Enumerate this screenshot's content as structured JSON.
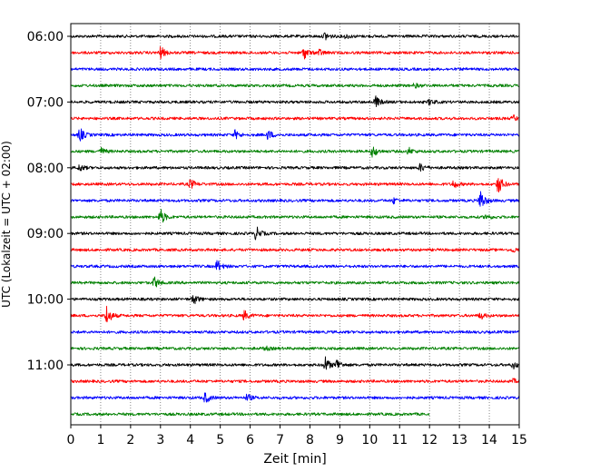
{
  "chart_data": {
    "type": "line",
    "title": "",
    "xlabel": "Zeit  [min]",
    "ylabel": "UTC (Lokalzeit = UTC + 02:00)",
    "xlim": [
      0,
      15
    ],
    "x_ticks": [
      "0",
      "1",
      "2",
      "3",
      "4",
      "5",
      "6",
      "7",
      "8",
      "9",
      "10",
      "11",
      "12",
      "13",
      "14",
      "15"
    ],
    "y_ticks": [
      "06:00",
      "07:00",
      "08:00",
      "09:00",
      "10:00",
      "11:00"
    ],
    "grid": "vertical-dotted",
    "trace_colors": [
      "#000000",
      "#ff0000",
      "#0000ff",
      "#008000"
    ],
    "traces": [
      {
        "time": "06:00",
        "end_min": 15,
        "events": [
          [
            8.5,
            0.6
          ],
          [
            9.2,
            0.3
          ]
        ]
      },
      {
        "time": "06:15",
        "end_min": 15,
        "events": [
          [
            3.0,
            0.9
          ],
          [
            7.8,
            0.9
          ],
          [
            8.3,
            0.5
          ]
        ]
      },
      {
        "time": "06:30",
        "end_min": 15,
        "events": []
      },
      {
        "time": "06:45",
        "end_min": 15,
        "events": [
          [
            11.5,
            0.3
          ]
        ]
      },
      {
        "time": "07:00",
        "end_min": 15,
        "events": [
          [
            10.2,
            0.8
          ],
          [
            12.0,
            0.4
          ]
        ]
      },
      {
        "time": "07:15",
        "end_min": 15,
        "events": [
          [
            14.8,
            0.4
          ]
        ]
      },
      {
        "time": "07:30",
        "end_min": 15,
        "events": [
          [
            0.3,
            1.0
          ],
          [
            5.5,
            0.6
          ],
          [
            6.6,
            0.7
          ]
        ]
      },
      {
        "time": "07:45",
        "end_min": 15,
        "events": [
          [
            1.0,
            0.5
          ],
          [
            10.1,
            0.9
          ],
          [
            11.3,
            0.5
          ]
        ]
      },
      {
        "time": "08:00",
        "end_min": 15,
        "events": [
          [
            0.3,
            0.5
          ],
          [
            11.7,
            0.6
          ]
        ]
      },
      {
        "time": "08:15",
        "end_min": 15,
        "events": [
          [
            4.0,
            0.7
          ],
          [
            12.8,
            0.6
          ],
          [
            14.3,
            1.4
          ]
        ]
      },
      {
        "time": "08:30",
        "end_min": 15,
        "events": [
          [
            10.8,
            0.4
          ],
          [
            13.7,
            1.6
          ]
        ]
      },
      {
        "time": "08:45",
        "end_min": 15,
        "events": [
          [
            3.0,
            1.2
          ],
          [
            13.9,
            0.4
          ]
        ]
      },
      {
        "time": "09:00",
        "end_min": 15,
        "events": [
          [
            6.2,
            1.0
          ]
        ]
      },
      {
        "time": "09:15",
        "end_min": 15,
        "events": [
          [
            14.8,
            0.3
          ]
        ]
      },
      {
        "time": "09:30",
        "end_min": 15,
        "events": [
          [
            4.9,
            0.9
          ]
        ]
      },
      {
        "time": "09:45",
        "end_min": 15,
        "events": [
          [
            2.8,
            0.8
          ]
        ]
      },
      {
        "time": "10:00",
        "end_min": 15,
        "events": [
          [
            4.1,
            0.8
          ]
        ]
      },
      {
        "time": "10:15",
        "end_min": 15,
        "events": [
          [
            1.2,
            1.4
          ],
          [
            5.8,
            0.7
          ],
          [
            13.7,
            0.5
          ]
        ]
      },
      {
        "time": "10:30",
        "end_min": 15,
        "events": []
      },
      {
        "time": "10:45",
        "end_min": 15,
        "events": [
          [
            6.5,
            0.3
          ]
        ]
      },
      {
        "time": "11:00",
        "end_min": 15,
        "events": [
          [
            8.5,
            1.2
          ],
          [
            8.9,
            0.8
          ],
          [
            14.8,
            0.5
          ]
        ]
      },
      {
        "time": "11:15",
        "end_min": 15,
        "events": [
          [
            14.8,
            0.3
          ]
        ]
      },
      {
        "time": "11:30",
        "end_min": 15,
        "events": [
          [
            4.5,
            0.8
          ],
          [
            5.9,
            0.5
          ]
        ]
      },
      {
        "time": "11:45",
        "end_min": 12,
        "events": []
      }
    ]
  }
}
